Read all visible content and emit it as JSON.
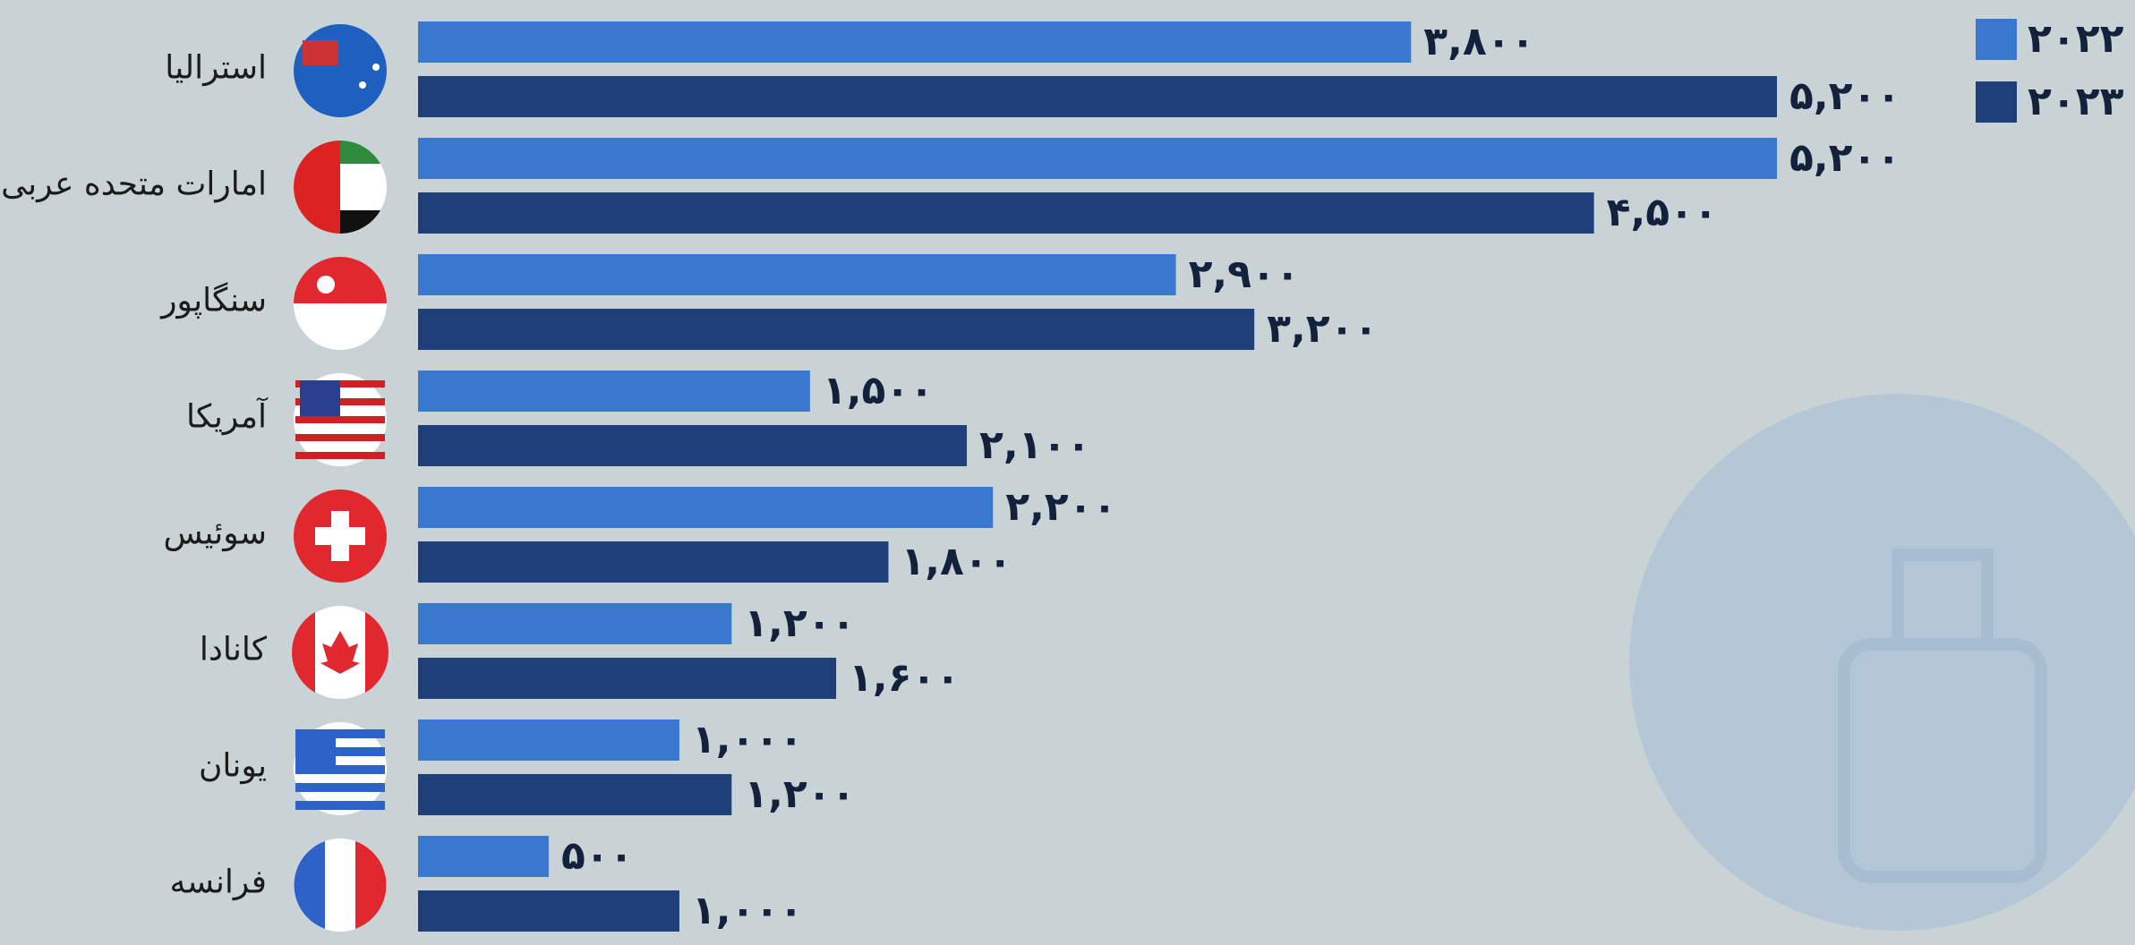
{
  "chart_data": {
    "type": "hbar",
    "categories": [
      "استرالیا",
      "امارات متحده عربی",
      "سنگاپور",
      "آمریکا",
      "سوئیس",
      "کانادا",
      "یونان",
      "فرانسه"
    ],
    "series": [
      {
        "name": "۲۰۲۲",
        "color": "#3a78d0",
        "values": [
          3800,
          5200,
          2900,
          1500,
          2200,
          1200,
          1000,
          500
        ],
        "value_labels": [
          "۳,۸۰۰",
          "۵,۲۰۰",
          "۲,۹۰۰",
          "۱,۵۰۰",
          "۲,۲۰۰",
          "۱,۲۰۰",
          "۱,۰۰۰",
          "۵۰۰"
        ]
      },
      {
        "name": "۲۰۲۳",
        "color": "#1f3f7a",
        "values": [
          5200,
          4500,
          3200,
          2100,
          1800,
          1600,
          1200,
          1000
        ],
        "value_labels": [
          "۵,۲۰۰",
          "۴,۵۰۰",
          "۳,۲۰۰",
          "۲,۱۰۰",
          "۱,۸۰۰",
          "۱,۶۰۰",
          "۱,۲۰۰",
          "۱,۰۰۰"
        ]
      }
    ],
    "legend": "top-right"
  }
}
